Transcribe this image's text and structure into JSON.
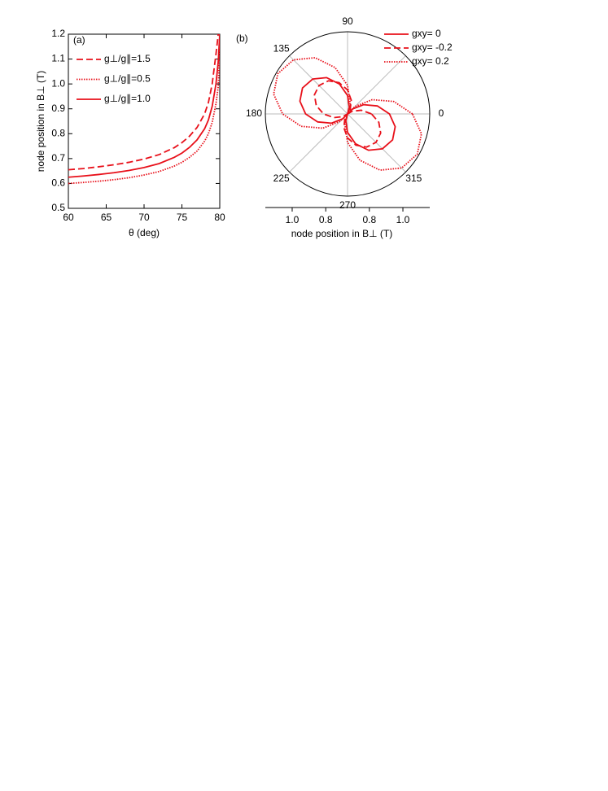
{
  "chart_data": [
    {
      "type": "line",
      "panel_label": "(a)",
      "x_label": "θ (deg)",
      "y_label": "node position in B⊥ (T)",
      "x": [
        60,
        62,
        64,
        66,
        68,
        70,
        72,
        74,
        75,
        76,
        77,
        78,
        78.5,
        79,
        79.5,
        79.8,
        80
      ],
      "series": [
        {
          "name": "g⊥/g∥=1.5",
          "color": "#e8101a",
          "line_style": "dashed",
          "values": [
            0.655,
            0.66,
            0.667,
            0.675,
            0.685,
            0.698,
            0.716,
            0.744,
            0.764,
            0.79,
            0.825,
            0.88,
            0.925,
            1.0,
            1.12,
            1.2,
            null
          ]
        },
        {
          "name": "g⊥/g∥=0.5",
          "color": "#e8101a",
          "line_style": "dotted",
          "values": [
            0.6,
            0.604,
            0.609,
            0.615,
            0.623,
            0.634,
            0.648,
            0.67,
            0.685,
            0.705,
            0.73,
            0.77,
            0.8,
            0.845,
            0.92,
            0.99,
            1.15
          ]
        },
        {
          "name": "g⊥/g∥=1.0",
          "color": "#e8101a",
          "line_style": "solid",
          "values": [
            0.625,
            0.63,
            0.636,
            0.643,
            0.652,
            0.664,
            0.68,
            0.705,
            0.722,
            0.745,
            0.775,
            0.82,
            0.855,
            0.91,
            1.0,
            1.09,
            1.2
          ]
        }
      ],
      "xlim": [
        60,
        80
      ],
      "ylim": [
        0.5,
        1.2
      ],
      "xticks": [
        60,
        65,
        70,
        75,
        80
      ],
      "yticks": [
        0.5,
        0.6,
        0.7,
        0.8,
        0.9,
        {
          "value": 1,
          "label": "1.0"
        },
        1.1,
        1.2
      ],
      "legend": "upper-left"
    },
    {
      "type": "polar",
      "panel_label": "(b)",
      "r_label": "node position in B⊥ (T)",
      "theta": [
        0,
        15,
        30,
        45,
        60,
        75,
        90,
        105,
        120,
        135,
        150,
        165,
        180,
        195,
        210,
        225,
        240,
        255,
        270,
        285,
        300,
        315,
        330,
        345
      ],
      "series": [
        {
          "name": "gxy= 0",
          "color": "#e8101a",
          "line_style": "solid",
          "values": [
            0.92,
            0.854,
            0.78,
            0.711,
            0.67,
            0.711,
            0.78,
            0.854,
            0.92,
            0.964,
            0.98,
            0.964,
            0.92,
            0.854,
            0.78,
            0.711,
            0.67,
            0.711,
            0.78,
            0.854,
            0.92,
            0.964,
            0.98,
            0.964
          ]
        },
        {
          "name": "gxy= -0.2",
          "color": "#e8101a",
          "line_style": "dashed",
          "values": [
            0.813,
            0.755,
            0.702,
            0.67,
            0.702,
            0.755,
            0.813,
            0.863,
            0.898,
            0.91,
            0.898,
            0.863,
            0.813,
            0.755,
            0.702,
            0.67,
            0.702,
            0.755,
            0.813,
            0.863,
            0.898,
            0.91,
            0.898,
            0.863
          ]
        },
        {
          "name": "gxy= 0.2",
          "color": "#e8101a",
          "line_style": "dotted",
          "values": [
            1.057,
            0.956,
            0.84,
            0.733,
            0.67,
            0.733,
            0.84,
            0.956,
            1.057,
            1.126,
            1.15,
            1.126,
            1.057,
            0.956,
            0.84,
            0.733,
            0.67,
            0.733,
            0.84,
            0.956,
            1.057,
            1.126,
            1.15,
            1.126
          ]
        }
      ],
      "rlim": [
        0.67,
        1.16
      ],
      "rticks": [
        0.8,
        {
          "value": 1,
          "label": "1.0"
        }
      ],
      "thetaticks": [
        0,
        {
          "value": 45,
          "label": null
        },
        90,
        135,
        180,
        225,
        270,
        315
      ],
      "legend": "outside-upper-right"
    }
  ]
}
